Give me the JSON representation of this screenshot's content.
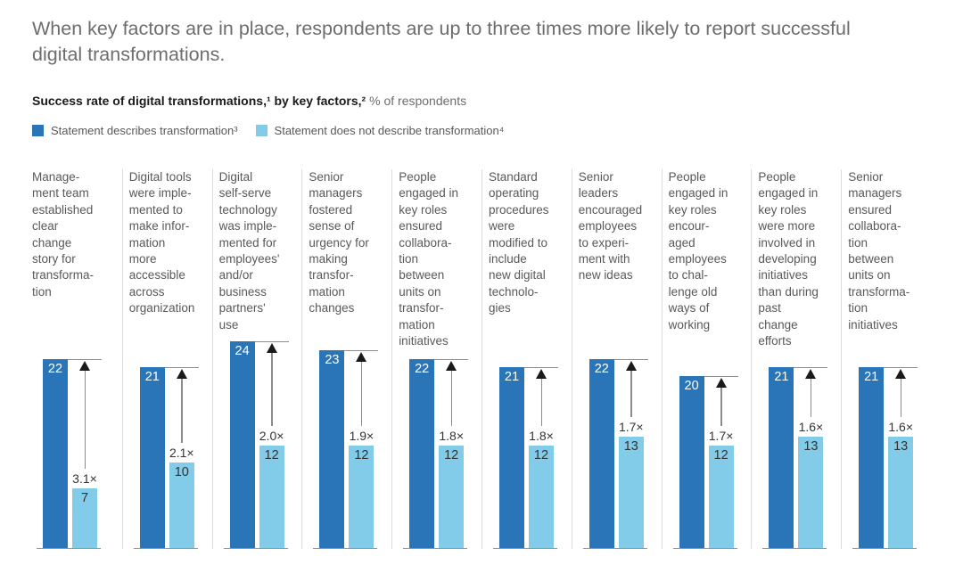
{
  "title": "When key factors are in place, respondents are up to three times more likely to report successful digital transformations.",
  "subtitle": {
    "bold": "Success rate of digital transformations,¹ by key factors,²",
    "regular": " % of respondents"
  },
  "legend": [
    {
      "label": "Statement describes transformation³",
      "color": "#2a74b8"
    },
    {
      "label": "Statement does not describe transformation⁴",
      "color": "#82cbe9"
    }
  ],
  "colors": {
    "dark_bar": "#2a74b8",
    "light_bar": "#82cbe9",
    "title_text": "#6d6d6d",
    "label_text": "#595959",
    "separator": "#dcdcdc",
    "baseline": "#999999",
    "arrow_line": "#8c8c8c",
    "arrow_head": "#1a1a1a"
  },
  "chart_data": {
    "type": "bar",
    "title": "Success rate of digital transformations, by key factors, % of respondents",
    "legend_position": "top",
    "grid": false,
    "ylim": [
      0,
      24
    ],
    "value_labels": "on bars",
    "categories": [
      "Management team established clear change story for transformation",
      "Digital tools were implemented to make information more accessible across organization",
      "Digital self-serve technology was implemented for employees' and/or business partners' use",
      "Senior managers fostered sense of urgency for making transformation changes",
      "People engaged in key roles ensured collaboration between units on transformation initiatives",
      "Standard operating procedures were modified to include new digital technologies",
      "Senior leaders encouraged employees to experiment with new ideas",
      "People engaged in key roles encouraged employees to challenge old ways of working",
      "People engaged in key roles were more involved in developing initiatives than during past change efforts",
      "Senior managers ensured collaboration between units on transformation initiatives"
    ],
    "series": [
      {
        "name": "Statement describes transformation³",
        "values": [
          22,
          21,
          24,
          23,
          22,
          21,
          22,
          20,
          21,
          21
        ]
      },
      {
        "name": "Statement does not describe transformation⁴",
        "values": [
          7,
          10,
          12,
          12,
          12,
          12,
          13,
          12,
          13,
          13
        ]
      }
    ],
    "multipliers": [
      "3.1×",
      "2.1×",
      "2.0×",
      "1.9×",
      "1.8×",
      "1.8×",
      "1.7×",
      "1.7×",
      "1.6×",
      "1.6×"
    ],
    "columns": [
      {
        "label": "Manage-\nment team\nestablished\nclear\nchange\nstory for\ntransforma-\ntion",
        "dark": 22,
        "light": 7,
        "multiplier": "3.1×"
      },
      {
        "label": "Digital tools\nwere imple-\nmented to\nmake infor-\nmation\nmore\naccessible\nacross\norganization",
        "dark": 21,
        "light": 10,
        "multiplier": "2.1×"
      },
      {
        "label": "Digital\nself-serve\ntechnology\nwas imple-\nmented for\nemployees'\nand/or\nbusiness\npartners'\nuse",
        "dark": 24,
        "light": 12,
        "multiplier": "2.0×"
      },
      {
        "label": "Senior\nmanagers\nfostered\nsense of\nurgency for\nmaking\ntransfor-\nmation\nchanges",
        "dark": 23,
        "light": 12,
        "multiplier": "1.9×"
      },
      {
        "label": "People\nengaged in\nkey roles\nensured\ncollabora-\ntion\nbetween\nunits on\ntransfor-\nmation\ninitiatives",
        "dark": 22,
        "light": 12,
        "multiplier": "1.8×"
      },
      {
        "label": "Standard\noperating\nprocedures\nwere\nmodified to\ninclude\nnew digital\ntechnolo-\ngies",
        "dark": 21,
        "light": 12,
        "multiplier": "1.8×"
      },
      {
        "label": "Senior\nleaders\nencouraged\nemployees\nto experi-\nment with\nnew ideas",
        "dark": 22,
        "light": 13,
        "multiplier": "1.7×"
      },
      {
        "label": "People\nengaged in\nkey roles\nencour-\naged\nemployees\nto chal-\nlenge old\nways of\nworking",
        "dark": 20,
        "light": 12,
        "multiplier": "1.7×"
      },
      {
        "label": "People\nengaged in\nkey roles\nwere more\ninvolved in\ndeveloping\ninitiatives\nthan during\npast\nchange\nefforts",
        "dark": 21,
        "light": 13,
        "multiplier": "1.6×"
      },
      {
        "label": "Senior\nmanagers\nensured\ncollabora-\ntion\nbetween\nunits on\ntransforma-\ntion\ninitiatives",
        "dark": 21,
        "light": 13,
        "multiplier": "1.6×"
      }
    ]
  }
}
